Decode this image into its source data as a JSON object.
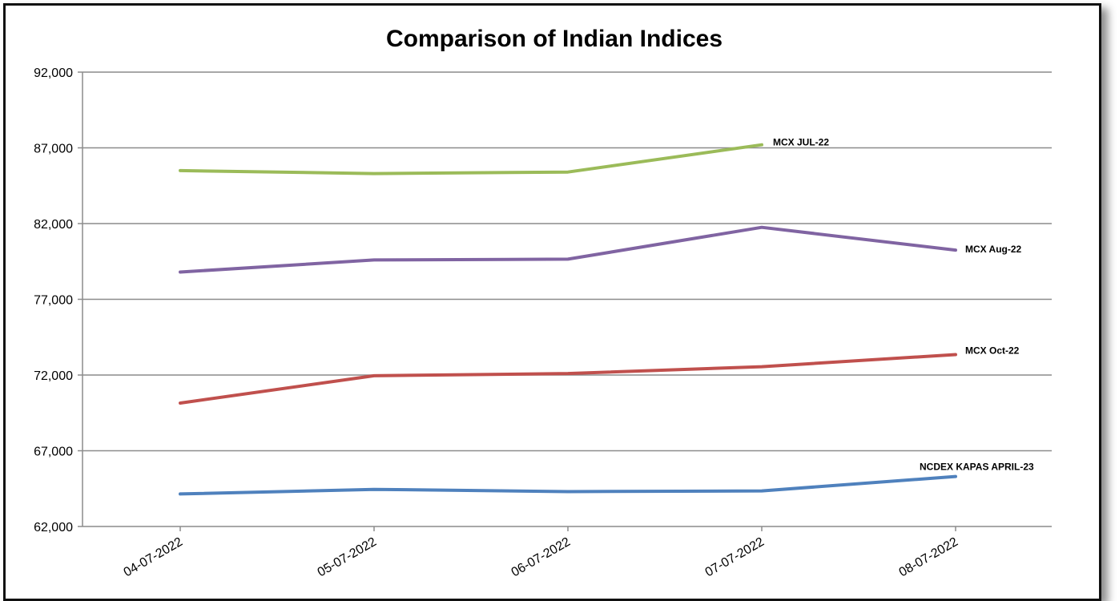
{
  "chart_data": {
    "type": "line",
    "title": "Comparison of Indian Indices",
    "xlabel": "",
    "ylabel": "",
    "categories": [
      "04-07-2022",
      "05-07-2022",
      "06-07-2022",
      "07-07-2022",
      "08-07-2022"
    ],
    "ylim": [
      62000,
      92000
    ],
    "yticks": [
      62000,
      67000,
      72000,
      77000,
      82000,
      87000,
      92000
    ],
    "ytick_labels": [
      "62,000",
      "67,000",
      "72,000",
      "77,000",
      "82,000",
      "87,000",
      "92,000"
    ],
    "grid": true,
    "legend": "none",
    "series": [
      {
        "name": "MCX JUL-22",
        "color": "#9bbb59",
        "values": [
          85500,
          85300,
          85400,
          87200,
          null
        ]
      },
      {
        "name": "MCX Aug-22",
        "color": "#8064a2",
        "values": [
          78800,
          79600,
          79650,
          81750,
          80250
        ]
      },
      {
        "name": "MCX Oct-22",
        "color": "#c0504d",
        "values": [
          70150,
          71950,
          72100,
          72550,
          73350
        ]
      },
      {
        "name": "NCDEX KAPAS APRIL-23",
        "color": "#4f81bd",
        "values": [
          64150,
          64450,
          64300,
          64350,
          65300
        ]
      }
    ]
  }
}
